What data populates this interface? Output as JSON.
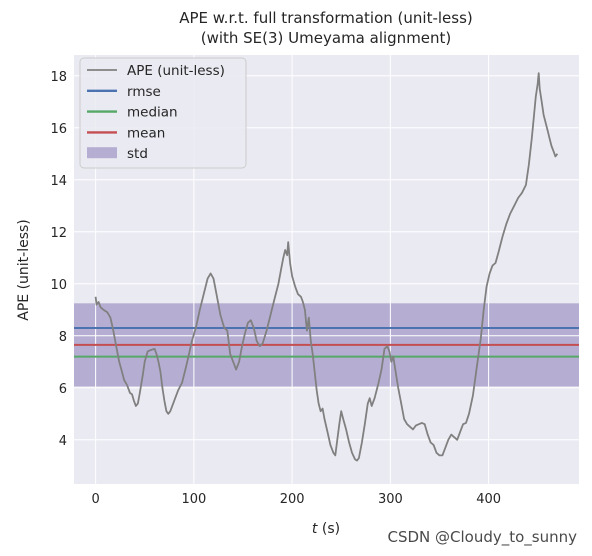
{
  "chart_data": {
    "type": "line",
    "title_lines": [
      "APE w.r.t. full transformation (unit-less)",
      "(with SE(3) Umeyama alignment)"
    ],
    "xlabel_italic": "t",
    "xlabel_rest": " (s)",
    "ylabel": "APE (unit-less)",
    "xlim": [
      -22,
      492
    ],
    "ylim": [
      2.3,
      18.8
    ],
    "xticks": [
      0,
      100,
      200,
      300,
      400
    ],
    "yticks": [
      4,
      6,
      8,
      10,
      12,
      14,
      16,
      18
    ],
    "grid": true,
    "legend_placement": "top-left",
    "stats": {
      "rmse": 8.3,
      "median": 7.2,
      "mean": 7.65,
      "std": 1.6
    },
    "series": [
      {
        "name": "APE (unit-less)",
        "color": "#808080",
        "points": [
          [
            0,
            9.5
          ],
          [
            1,
            9.2
          ],
          [
            3,
            9.3
          ],
          [
            5,
            9.1
          ],
          [
            8,
            9.0
          ],
          [
            12,
            8.9
          ],
          [
            15,
            8.7
          ],
          [
            18,
            8.2
          ],
          [
            21,
            7.6
          ],
          [
            24,
            7.0
          ],
          [
            27,
            6.6
          ],
          [
            29,
            6.3
          ],
          [
            32,
            6.1
          ],
          [
            35,
            5.8
          ],
          [
            37,
            5.75
          ],
          [
            39,
            5.5
          ],
          [
            41,
            5.3
          ],
          [
            43,
            5.4
          ],
          [
            45,
            5.8
          ],
          [
            48,
            6.5
          ],
          [
            50,
            7.0
          ],
          [
            53,
            7.4
          ],
          [
            56,
            7.45
          ],
          [
            60,
            7.5
          ],
          [
            62,
            7.3
          ],
          [
            64,
            7.0
          ],
          [
            66,
            6.6
          ],
          [
            68,
            6.0
          ],
          [
            70,
            5.5
          ],
          [
            72,
            5.1
          ],
          [
            74,
            5.0
          ],
          [
            76,
            5.1
          ],
          [
            80,
            5.5
          ],
          [
            84,
            5.9
          ],
          [
            88,
            6.2
          ],
          [
            92,
            6.8
          ],
          [
            95,
            7.3
          ],
          [
            98,
            7.8
          ],
          [
            102,
            8.3
          ],
          [
            106,
            9.0
          ],
          [
            110,
            9.6
          ],
          [
            114,
            10.2
          ],
          [
            117,
            10.4
          ],
          [
            120,
            10.2
          ],
          [
            123,
            9.6
          ],
          [
            127,
            8.8
          ],
          [
            131,
            8.3
          ],
          [
            134,
            8.2
          ],
          [
            137,
            7.3
          ],
          [
            140,
            7.0
          ],
          [
            143,
            6.7
          ],
          [
            146,
            7.0
          ],
          [
            149,
            7.6
          ],
          [
            152,
            8.1
          ],
          [
            155,
            8.5
          ],
          [
            158,
            8.6
          ],
          [
            161,
            8.3
          ],
          [
            164,
            7.8
          ],
          [
            167,
            7.6
          ],
          [
            170,
            7.7
          ],
          [
            174,
            8.2
          ],
          [
            178,
            8.8
          ],
          [
            182,
            9.4
          ],
          [
            186,
            10.0
          ],
          [
            189,
            10.6
          ],
          [
            191,
            11.0
          ],
          [
            193,
            11.3
          ],
          [
            195,
            11.1
          ],
          [
            196,
            11.6
          ],
          [
            198,
            10.8
          ],
          [
            200,
            10.3
          ],
          [
            203,
            9.9
          ],
          [
            206,
            9.6
          ],
          [
            209,
            9.5
          ],
          [
            211,
            9.3
          ],
          [
            213,
            9.0
          ],
          [
            215,
            8.2
          ],
          [
            217,
            8.7
          ],
          [
            219,
            7.8
          ],
          [
            221,
            7.3
          ],
          [
            223,
            6.6
          ],
          [
            225,
            5.9
          ],
          [
            227,
            5.4
          ],
          [
            229,
            5.1
          ],
          [
            231,
            5.2
          ],
          [
            233,
            4.8
          ],
          [
            236,
            4.3
          ],
          [
            239,
            3.8
          ],
          [
            242,
            3.5
          ],
          [
            244,
            3.4
          ],
          [
            246,
            4.0
          ],
          [
            248,
            4.6
          ],
          [
            250,
            5.1
          ],
          [
            252,
            4.8
          ],
          [
            255,
            4.4
          ],
          [
            258,
            3.9
          ],
          [
            261,
            3.5
          ],
          [
            264,
            3.25
          ],
          [
            266,
            3.2
          ],
          [
            268,
            3.3
          ],
          [
            271,
            3.9
          ],
          [
            274,
            4.6
          ],
          [
            277,
            5.4
          ],
          [
            279,
            5.6
          ],
          [
            281,
            5.3
          ],
          [
            284,
            5.6
          ],
          [
            288,
            6.2
          ],
          [
            291,
            6.7
          ],
          [
            294,
            7.5
          ],
          [
            297,
            7.6
          ],
          [
            299,
            7.4
          ],
          [
            301,
            7.0
          ],
          [
            303,
            7.2
          ],
          [
            305,
            6.7
          ],
          [
            308,
            6.0
          ],
          [
            311,
            5.4
          ],
          [
            314,
            4.8
          ],
          [
            317,
            4.6
          ],
          [
            320,
            4.5
          ],
          [
            323,
            4.4
          ],
          [
            326,
            4.55
          ],
          [
            329,
            4.6
          ],
          [
            332,
            4.65
          ],
          [
            335,
            4.6
          ],
          [
            338,
            4.2
          ],
          [
            341,
            3.9
          ],
          [
            344,
            3.8
          ],
          [
            347,
            3.5
          ],
          [
            350,
            3.4
          ],
          [
            353,
            3.4
          ],
          [
            356,
            3.7
          ],
          [
            359,
            4.0
          ],
          [
            362,
            4.2
          ],
          [
            365,
            4.1
          ],
          [
            368,
            4.0
          ],
          [
            371,
            4.3
          ],
          [
            374,
            4.6
          ],
          [
            377,
            4.65
          ],
          [
            380,
            5.0
          ],
          [
            384,
            5.7
          ],
          [
            388,
            6.8
          ],
          [
            392,
            7.9
          ],
          [
            395,
            9.0
          ],
          [
            398,
            9.9
          ],
          [
            401,
            10.4
          ],
          [
            404,
            10.7
          ],
          [
            407,
            10.8
          ],
          [
            410,
            11.2
          ],
          [
            414,
            11.8
          ],
          [
            418,
            12.3
          ],
          [
            422,
            12.7
          ],
          [
            426,
            13.0
          ],
          [
            430,
            13.3
          ],
          [
            434,
            13.5
          ],
          [
            438,
            13.8
          ],
          [
            441,
            14.6
          ],
          [
            444,
            15.6
          ],
          [
            446,
            16.4
          ],
          [
            448,
            17.2
          ],
          [
            450,
            17.7
          ],
          [
            451,
            18.1
          ],
          [
            452,
            17.5
          ],
          [
            454,
            17.0
          ],
          [
            456,
            16.5
          ],
          [
            458,
            16.2
          ],
          [
            460,
            15.9
          ],
          [
            462,
            15.6
          ],
          [
            464,
            15.3
          ],
          [
            466,
            15.1
          ],
          [
            468,
            14.9
          ],
          [
            470,
            15.0
          ]
        ]
      },
      {
        "name": "rmse",
        "color": "#4c72b0"
      },
      {
        "name": "median",
        "color": "#55a868"
      },
      {
        "name": "mean",
        "color": "#c44e52"
      },
      {
        "name": "std",
        "color": "#8172b2"
      }
    ]
  },
  "watermark": "CSDN @Cloudy_to_sunny",
  "colors": {
    "plot_bg": "#eaeaf2",
    "grid": "#ffffff",
    "std_fill": "#8172b2",
    "legend_bg": "#eaeaf2"
  }
}
